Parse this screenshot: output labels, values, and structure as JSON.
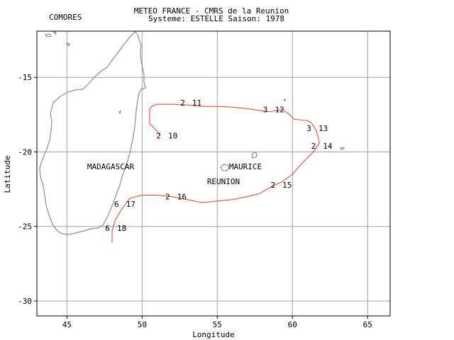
{
  "header": {
    "left_label": "COMORES",
    "title_line1": "METEO FRANCE - CMRS de la Reunion",
    "title_line2": "Systeme: ESTELLE  Saison: 1978"
  },
  "axes": {
    "xlabel": "Longitude",
    "ylabel": "Latitude",
    "x_ticks": [
      "45",
      "50",
      "55",
      "60",
      "65"
    ],
    "y_ticks": [
      "-15",
      "-20",
      "-25",
      "-30"
    ]
  },
  "places": {
    "madagascar": "MADAGASCAR",
    "maurice": "MAURICE",
    "reunion": "REUNION"
  },
  "colors": {
    "track": "#e8392b",
    "coast": "#8c8c8c",
    "grid": "#a0a0a0"
  },
  "chart_data": {
    "type": "map",
    "xlim": [
      43,
      66.5
    ],
    "ylim": [
      -31,
      -11.9
    ],
    "grid": true,
    "track": [
      [
        48,
        -26.1
      ],
      [
        48,
        -25.3
      ],
      [
        48.2,
        -24.6
      ],
      [
        48.6,
        -23.9
      ],
      [
        49.2,
        -23.1
      ],
      [
        50,
        -22.9
      ],
      [
        51,
        -22.9
      ],
      [
        52,
        -23.0
      ],
      [
        53,
        -23.2
      ],
      [
        54,
        -23.4
      ],
      [
        55,
        -23.3
      ],
      [
        56,
        -23.2
      ],
      [
        57,
        -23.0
      ],
      [
        57.8,
        -22.8
      ],
      [
        58.5,
        -22.4
      ],
      [
        59.3,
        -22.0
      ],
      [
        60,
        -21.5
      ],
      [
        60.6,
        -20.8
      ],
      [
        61.3,
        -20.1
      ],
      [
        61.8,
        -19.4
      ],
      [
        61.6,
        -18.6
      ],
      [
        61.3,
        -18.1
      ],
      [
        61.0,
        -17.9
      ],
      [
        60.1,
        -17.8
      ],
      [
        59.7,
        -17.4
      ],
      [
        59.3,
        -17.15
      ],
      [
        58.5,
        -17.3
      ],
      [
        58.0,
        -17.25
      ],
      [
        57.0,
        -17.1
      ],
      [
        56.0,
        -17.0
      ],
      [
        55.0,
        -16.95
      ],
      [
        54.0,
        -16.95
      ],
      [
        53.0,
        -16.85
      ],
      [
        52.0,
        -16.8
      ],
      [
        51.0,
        -16.8
      ],
      [
        50.6,
        -16.95
      ],
      [
        50.5,
        -17.2
      ],
      [
        50.5,
        -18.1
      ],
      [
        50.9,
        -18.5
      ],
      [
        51.2,
        -18.9
      ]
    ],
    "annotations": [
      {
        "lon": 51.1,
        "lat": -18.9,
        "intensity": "2",
        "day": "10"
      },
      {
        "lon": 52.7,
        "lat": -16.7,
        "intensity": "2",
        "day": "11"
      },
      {
        "lon": 58.2,
        "lat": -17.15,
        "intensity": "3",
        "day": "12"
      },
      {
        "lon": 61.1,
        "lat": -18.4,
        "intensity": "3",
        "day": "13"
      },
      {
        "lon": 61.4,
        "lat": -19.6,
        "intensity": "2",
        "day": "14"
      },
      {
        "lon": 58.7,
        "lat": -22.2,
        "intensity": "2",
        "day": "15"
      },
      {
        "lon": 51.7,
        "lat": -23.0,
        "intensity": "2",
        "day": "16"
      },
      {
        "lon": 48.3,
        "lat": -23.5,
        "intensity": "6",
        "day": "17"
      },
      {
        "lon": 47.7,
        "lat": -25.1,
        "intensity": "6",
        "day": "18"
      }
    ]
  }
}
